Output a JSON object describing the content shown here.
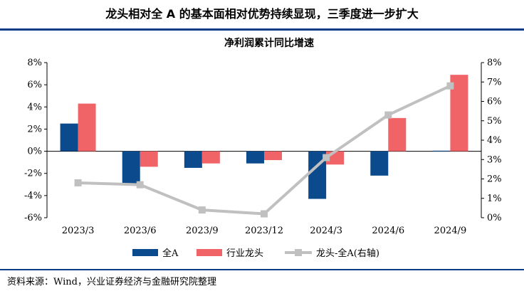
{
  "header": {
    "title": "龙头相对全 A 的基本面相对优势持续显现，三季度进一步扩大"
  },
  "footer": {
    "source": "资料来源：Wind，兴业证券经济与金融研究院整理"
  },
  "colors": {
    "rule": "#0b3c8a",
    "series_all_a": "#0b4a8c",
    "series_leader": "#f06468",
    "series_diff": "#c0c0c0"
  },
  "chart_data": {
    "type": "bar",
    "title": "净利润累计同比增速",
    "categories": [
      "2023/3",
      "2023/6",
      "2023/9",
      "2023/12",
      "2024/3",
      "2024/6",
      "2024/9"
    ],
    "series": [
      {
        "name": "全A",
        "axis": "left",
        "kind": "bar",
        "values": [
          2.5,
          -3.0,
          -1.5,
          -1.1,
          -4.3,
          -2.2,
          0.05
        ]
      },
      {
        "name": "行业龙头",
        "axis": "left",
        "kind": "bar",
        "values": [
          4.3,
          -1.4,
          -1.1,
          -0.8,
          -1.2,
          3.0,
          6.9
        ]
      },
      {
        "name": "龙头-全A(右轴)",
        "axis": "right",
        "kind": "line",
        "values": [
          1.8,
          1.7,
          0.4,
          0.2,
          3.1,
          5.3,
          6.8
        ]
      }
    ],
    "ylim_left": [
      -6,
      8
    ],
    "ylim_right": [
      0,
      8
    ],
    "yticks_left": [
      "8%",
      "6%",
      "4%",
      "2%",
      "0%",
      "-2%",
      "-4%",
      "-6%"
    ],
    "yticks_right": [
      "8%",
      "7%",
      "6%",
      "5%",
      "4%",
      "3%",
      "2%",
      "1%",
      "0%"
    ],
    "legend_position": "bottom",
    "grid": false
  }
}
